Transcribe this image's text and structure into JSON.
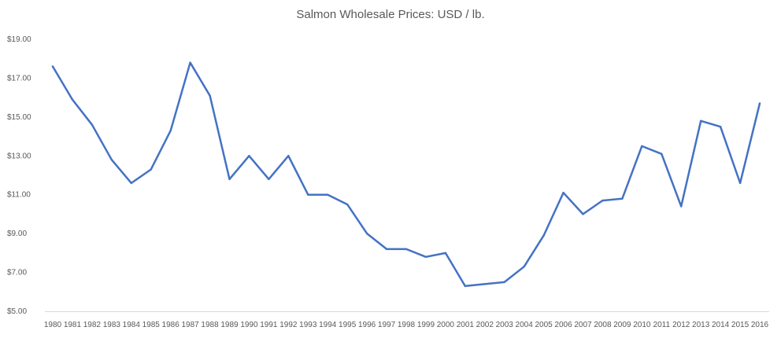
{
  "chart_data": {
    "type": "line",
    "title": "Salmon Wholesale Prices: USD / lb.",
    "xlabel": "",
    "ylabel": "",
    "ylim": [
      5,
      19
    ],
    "yticks": [
      5,
      7,
      9,
      11,
      13,
      15,
      17,
      19
    ],
    "ytick_labels": [
      "$5.00",
      "$7.00",
      "$9.00",
      "$11.00",
      "$13.00",
      "$15.00",
      "$17.00",
      "$19.00"
    ],
    "grid": false,
    "legend": "none",
    "categories": [
      "1980",
      "1981",
      "1982",
      "1983",
      "1984",
      "1985",
      "1986",
      "1987",
      "1988",
      "1989",
      "1990",
      "1991",
      "1992",
      "1993",
      "1994",
      "1995",
      "1996",
      "1997",
      "1998",
      "1999",
      "2000",
      "2001",
      "2002",
      "2003",
      "2004",
      "2005",
      "2006",
      "2007",
      "2008",
      "2009",
      "2010",
      "2011",
      "2012",
      "2013",
      "2014",
      "2015",
      "2016"
    ],
    "series": [
      {
        "values": [
          17.6,
          15.9,
          14.6,
          12.8,
          11.6,
          12.3,
          14.3,
          17.8,
          16.1,
          11.8,
          13.0,
          11.8,
          13.0,
          11.0,
          11.0,
          10.5,
          9.0,
          8.2,
          8.2,
          7.8,
          8.0,
          6.3,
          6.4,
          6.5,
          7.3,
          8.9,
          11.1,
          10.0,
          10.7,
          10.8,
          13.5,
          13.1,
          10.4,
          14.8,
          14.5,
          11.6,
          15.7
        ],
        "color": "#4472C4"
      }
    ],
    "axis_color": "#595959",
    "text_color": "#595959"
  }
}
